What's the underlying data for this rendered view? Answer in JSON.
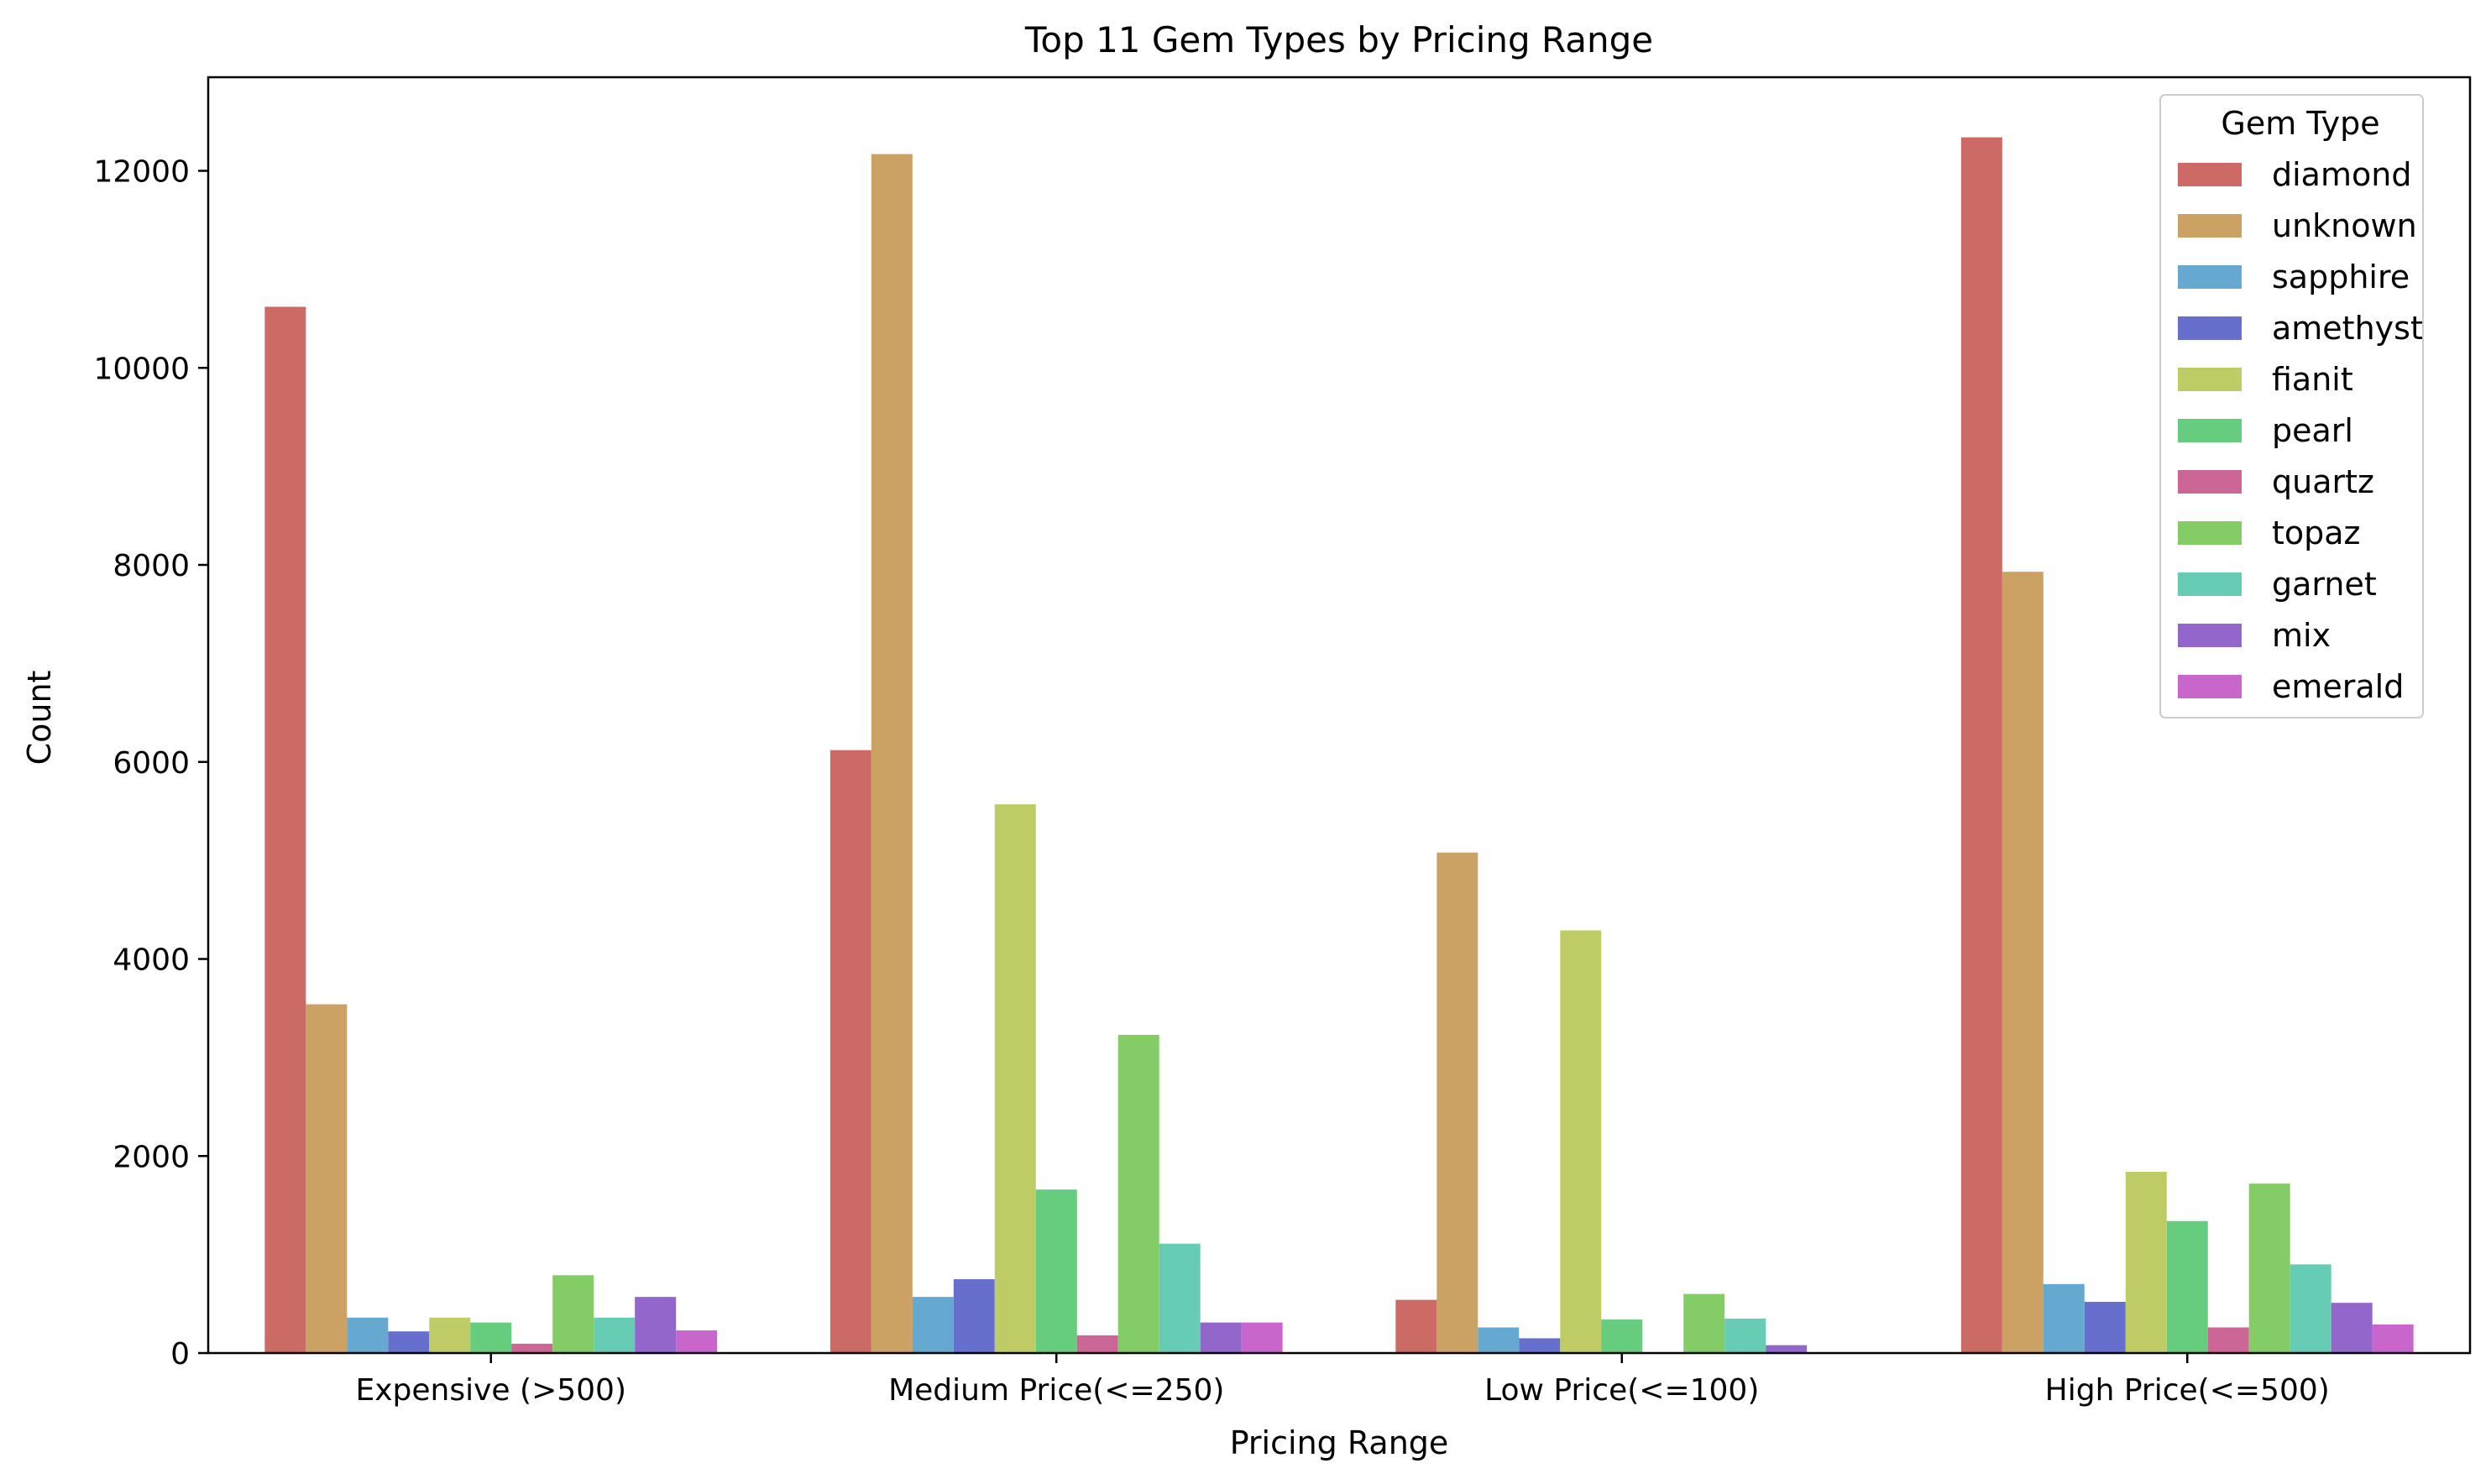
{
  "chart_data": {
    "type": "bar",
    "title": "Top 11 Gem Types by Pricing Range",
    "xlabel": "Pricing Range",
    "ylabel": "Count",
    "ylim": [
      0,
      12950
    ],
    "yticks": [
      0,
      2000,
      4000,
      6000,
      8000,
      10000,
      12000
    ],
    "grid": false,
    "legend_title": "Gem Type",
    "legend_position": "top-right",
    "categories": [
      "Expensive (>500)",
      "Medium Price(<=250)",
      "Low Price(<=100)",
      "High Price(<=500)"
    ],
    "series": [
      {
        "name": "diamond",
        "color": "#cc6b66",
        "values": [
          10620,
          6120,
          540,
          12340
        ]
      },
      {
        "name": "unknown",
        "color": "#cba164",
        "values": [
          3540,
          12170,
          5080,
          7930
        ]
      },
      {
        "name": "sapphire",
        "color": "#66a9d0",
        "values": [
          360,
          570,
          260,
          700
        ]
      },
      {
        "name": "amethyst",
        "color": "#6670cc",
        "values": [
          220,
          750,
          150,
          520
        ]
      },
      {
        "name": "fianit",
        "color": "#bfcc66",
        "values": [
          360,
          5570,
          4290,
          1840
        ]
      },
      {
        "name": "pearl",
        "color": "#66cc7e",
        "values": [
          310,
          1660,
          340,
          1340
        ]
      },
      {
        "name": "quartz",
        "color": "#cc6696",
        "values": [
          95,
          180,
          0,
          260
        ]
      },
      {
        "name": "topaz",
        "color": "#84cc66",
        "values": [
          790,
          3230,
          600,
          1720
        ]
      },
      {
        "name": "garnet",
        "color": "#66ccb4",
        "values": [
          360,
          1110,
          350,
          900
        ]
      },
      {
        "name": "mix",
        "color": "#9366cc",
        "values": [
          570,
          310,
          80,
          510
        ]
      },
      {
        "name": "emerald",
        "color": "#c966cc",
        "values": [
          230,
          310,
          0,
          290
        ]
      }
    ]
  }
}
